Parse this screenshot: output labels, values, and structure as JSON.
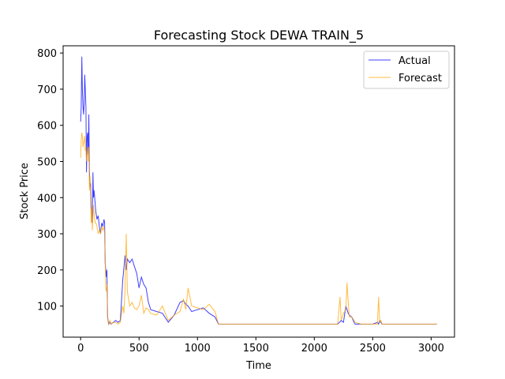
{
  "chart_data": {
    "type": "line",
    "title": "Forecasting Stock DEWA TRAIN_5",
    "xlabel": "Time",
    "ylabel": "Stock Price",
    "xlim": [
      -150,
      3200
    ],
    "ylim": [
      14,
      820
    ],
    "x_ticks": [
      0,
      500,
      1000,
      1500,
      2000,
      2500,
      3000
    ],
    "y_ticks": [
      100,
      200,
      300,
      400,
      500,
      600,
      700,
      800
    ],
    "grid": false,
    "legend_position": "top-right",
    "series": [
      {
        "name": "Actual",
        "color": "#0000ff",
        "x": [
          0,
          5,
          10,
          15,
          20,
          25,
          30,
          35,
          40,
          45,
          50,
          55,
          60,
          65,
          70,
          75,
          80,
          85,
          90,
          95,
          100,
          105,
          110,
          115,
          120,
          125,
          130,
          140,
          150,
          160,
          170,
          180,
          190,
          200,
          205,
          210,
          215,
          220,
          225,
          230,
          235,
          240,
          250,
          260,
          280,
          300,
          320,
          340,
          360,
          380,
          390,
          400,
          420,
          440,
          460,
          480,
          500,
          520,
          540,
          560,
          580,
          600,
          650,
          700,
          750,
          800,
          850,
          880,
          900,
          920,
          950,
          1000,
          1050,
          1100,
          1150,
          1180,
          1200,
          1500,
          2000,
          2200,
          2230,
          2250,
          2270,
          2280,
          2290,
          2300,
          2320,
          2340,
          2350,
          2400,
          2500,
          2540,
          2550,
          2560,
          2570,
          2580,
          2600,
          3050
        ],
        "y": [
          610,
          650,
          790,
          700,
          650,
          630,
          660,
          740,
          700,
          650,
          470,
          570,
          580,
          520,
          630,
          470,
          430,
          440,
          380,
          350,
          330,
          470,
          400,
          420,
          400,
          380,
          360,
          340,
          350,
          320,
          300,
          330,
          320,
          340,
          330,
          220,
          200,
          180,
          200,
          70,
          60,
          50,
          55,
          50,
          55,
          60,
          55,
          60,
          170,
          240,
          200,
          230,
          220,
          230,
          210,
          190,
          150,
          180,
          160,
          150,
          110,
          90,
          85,
          80,
          55,
          75,
          110,
          115,
          105,
          100,
          85,
          90,
          95,
          80,
          70,
          50,
          50,
          50,
          50,
          50,
          60,
          55,
          100,
          90,
          80,
          75,
          70,
          55,
          50,
          50,
          50,
          55,
          50,
          60,
          55,
          50,
          50,
          50
        ]
      },
      {
        "name": "Forecast",
        "color": "#ffa500",
        "x": [
          0,
          5,
          10,
          15,
          20,
          25,
          30,
          35,
          40,
          45,
          50,
          55,
          60,
          65,
          70,
          75,
          80,
          85,
          90,
          95,
          100,
          105,
          110,
          115,
          120,
          125,
          130,
          140,
          150,
          160,
          170,
          180,
          190,
          200,
          205,
          210,
          215,
          220,
          225,
          230,
          235,
          240,
          250,
          260,
          280,
          300,
          320,
          340,
          360,
          370,
          380,
          390,
          400,
          410,
          420,
          440,
          460,
          480,
          500,
          520,
          540,
          560,
          580,
          600,
          650,
          700,
          750,
          800,
          850,
          880,
          900,
          920,
          950,
          1000,
          1050,
          1100,
          1150,
          1180,
          1200,
          1500,
          2000,
          2200,
          2220,
          2230,
          2250,
          2270,
          2280,
          2290,
          2300,
          2320,
          2340,
          2350,
          2400,
          2500,
          2540,
          2550,
          2560,
          2570,
          2580,
          2600,
          3050
        ],
        "y": [
          510,
          560,
          580,
          570,
          540,
          550,
          560,
          570,
          530,
          540,
          500,
          520,
          540,
          500,
          540,
          420,
          460,
          410,
          330,
          370,
          310,
          350,
          380,
          360,
          340,
          330,
          330,
          320,
          300,
          310,
          300,
          320,
          310,
          320,
          300,
          230,
          150,
          140,
          160,
          80,
          55,
          50,
          60,
          50,
          55,
          55,
          50,
          55,
          100,
          80,
          150,
          300,
          140,
          120,
          100,
          110,
          95,
          90,
          100,
          130,
          80,
          95,
          90,
          80,
          75,
          100,
          60,
          75,
          85,
          120,
          90,
          150,
          100,
          95,
          90,
          105,
          85,
          50,
          50,
          50,
          50,
          50,
          125,
          60,
          80,
          90,
          165,
          110,
          70,
          70,
          60,
          55,
          50,
          50,
          50,
          125,
          55,
          60,
          50,
          50,
          50
        ]
      }
    ]
  }
}
